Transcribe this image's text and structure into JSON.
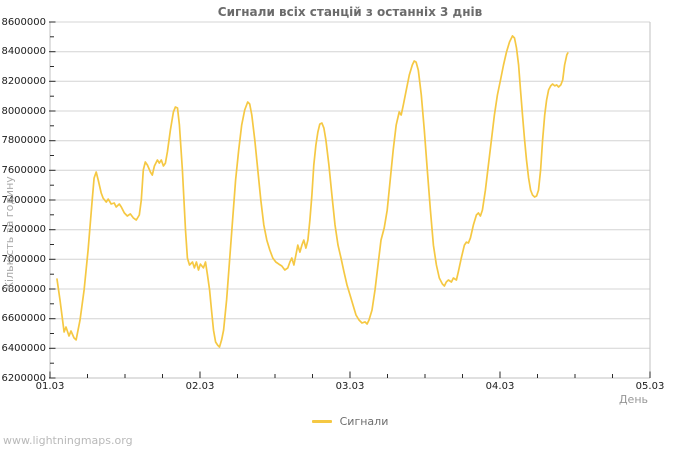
{
  "watermark": "www.lightningmaps.org",
  "chart_data": {
    "type": "line",
    "title": "Сигнали всіх станцій з останніх 3 днів",
    "xlabel": "День",
    "ylabel": "Кількість за годину",
    "legend_position": "bottom-center",
    "grid": "horizontal",
    "x_ticks": [
      "01.03",
      "02.03",
      "03.03",
      "04.03",
      "05.03"
    ],
    "x_minor_divisions_per_day": 4,
    "ylim": [
      6200000,
      8600000
    ],
    "y_tick_step": 200000,
    "y_minor_step": 100000,
    "y_ticks": [
      8600000,
      8400000,
      8200000,
      8000000,
      7800000,
      7600000,
      7400000,
      7200000,
      7000000,
      6800000,
      6600000,
      6400000,
      6200000
    ],
    "colors": {
      "line": "#f5c843",
      "grid": "#d4d4d4",
      "frame": "#c2c2c2",
      "tick": "#2a2a2a",
      "title": "#6b6b6b",
      "axis_text": "#1c1c1c",
      "muted_text": "#a8a8a8"
    },
    "series": [
      {
        "name": "Сигнали",
        "color": "#f5c843",
        "points_format": [
          "days_after_01.03",
          "signals_per_hour"
        ],
        "points": [
          [
            0.047,
            6867000
          ],
          [
            0.067,
            6726000
          ],
          [
            0.094,
            6510000
          ],
          [
            0.107,
            6544000
          ],
          [
            0.127,
            6483000
          ],
          [
            0.14,
            6517000
          ],
          [
            0.16,
            6470000
          ],
          [
            0.174,
            6457000
          ],
          [
            0.2,
            6590000
          ],
          [
            0.227,
            6793000
          ],
          [
            0.254,
            7063000
          ],
          [
            0.281,
            7400000
          ],
          [
            0.294,
            7548000
          ],
          [
            0.308,
            7589000
          ],
          [
            0.321,
            7535000
          ],
          [
            0.341,
            7447000
          ],
          [
            0.354,
            7413000
          ],
          [
            0.375,
            7386000
          ],
          [
            0.388,
            7406000
          ],
          [
            0.408,
            7373000
          ],
          [
            0.428,
            7380000
          ],
          [
            0.441,
            7353000
          ],
          [
            0.462,
            7373000
          ],
          [
            0.475,
            7353000
          ],
          [
            0.495,
            7313000
          ],
          [
            0.515,
            7292000
          ],
          [
            0.535,
            7306000
          ],
          [
            0.555,
            7279000
          ],
          [
            0.575,
            7265000
          ],
          [
            0.595,
            7299000
          ],
          [
            0.609,
            7400000
          ],
          [
            0.622,
            7602000
          ],
          [
            0.635,
            7656000
          ],
          [
            0.649,
            7636000
          ],
          [
            0.669,
            7589000
          ],
          [
            0.682,
            7568000
          ],
          [
            0.696,
            7629000
          ],
          [
            0.716,
            7670000
          ],
          [
            0.729,
            7649000
          ],
          [
            0.742,
            7670000
          ],
          [
            0.756,
            7629000
          ],
          [
            0.769,
            7649000
          ],
          [
            0.783,
            7724000
          ],
          [
            0.803,
            7872000
          ],
          [
            0.823,
            7993000
          ],
          [
            0.836,
            8027000
          ],
          [
            0.85,
            8020000
          ],
          [
            0.863,
            7906000
          ],
          [
            0.883,
            7602000
          ],
          [
            0.903,
            7198000
          ],
          [
            0.916,
            7009000
          ],
          [
            0.93,
            6962000
          ],
          [
            0.95,
            6982000
          ],
          [
            0.963,
            6942000
          ],
          [
            0.976,
            6982000
          ],
          [
            0.99,
            6928000
          ],
          [
            1.003,
            6968000
          ],
          [
            1.023,
            6942000
          ],
          [
            1.037,
            6982000
          ],
          [
            1.05,
            6894000
          ],
          [
            1.064,
            6793000
          ],
          [
            1.077,
            6658000
          ],
          [
            1.09,
            6523000
          ],
          [
            1.104,
            6443000
          ],
          [
            1.117,
            6422000
          ],
          [
            1.13,
            6409000
          ],
          [
            1.144,
            6457000
          ],
          [
            1.157,
            6523000
          ],
          [
            1.177,
            6726000
          ],
          [
            1.197,
            6995000
          ],
          [
            1.217,
            7265000
          ],
          [
            1.237,
            7535000
          ],
          [
            1.258,
            7737000
          ],
          [
            1.278,
            7906000
          ],
          [
            1.298,
            8007000
          ],
          [
            1.318,
            8061000
          ],
          [
            1.331,
            8047000
          ],
          [
            1.345,
            7973000
          ],
          [
            1.365,
            7804000
          ],
          [
            1.385,
            7602000
          ],
          [
            1.405,
            7400000
          ],
          [
            1.425,
            7232000
          ],
          [
            1.445,
            7130000
          ],
          [
            1.465,
            7063000
          ],
          [
            1.485,
            7009000
          ],
          [
            1.505,
            6982000
          ],
          [
            1.525,
            6968000
          ],
          [
            1.545,
            6955000
          ],
          [
            1.565,
            6928000
          ],
          [
            1.585,
            6942000
          ],
          [
            1.599,
            6982000
          ],
          [
            1.612,
            7009000
          ],
          [
            1.626,
            6962000
          ],
          [
            1.639,
            7029000
          ],
          [
            1.652,
            7096000
          ],
          [
            1.666,
            7049000
          ],
          [
            1.679,
            7096000
          ],
          [
            1.692,
            7130000
          ],
          [
            1.706,
            7076000
          ],
          [
            1.719,
            7130000
          ],
          [
            1.733,
            7265000
          ],
          [
            1.746,
            7434000
          ],
          [
            1.759,
            7636000
          ],
          [
            1.773,
            7771000
          ],
          [
            1.786,
            7859000
          ],
          [
            1.799,
            7912000
          ],
          [
            1.813,
            7919000
          ],
          [
            1.826,
            7885000
          ],
          [
            1.839,
            7804000
          ],
          [
            1.859,
            7636000
          ],
          [
            1.879,
            7434000
          ],
          [
            1.9,
            7232000
          ],
          [
            1.92,
            7096000
          ],
          [
            1.94,
            7009000
          ],
          [
            1.96,
            6915000
          ],
          [
            1.98,
            6827000
          ],
          [
            2.0,
            6760000
          ],
          [
            2.02,
            6692000
          ],
          [
            2.04,
            6625000
          ],
          [
            2.06,
            6591000
          ],
          [
            2.08,
            6571000
          ],
          [
            2.1,
            6578000
          ],
          [
            2.114,
            6564000
          ],
          [
            2.127,
            6591000
          ],
          [
            2.147,
            6658000
          ],
          [
            2.167,
            6793000
          ],
          [
            2.187,
            6962000
          ],
          [
            2.207,
            7130000
          ],
          [
            2.228,
            7211000
          ],
          [
            2.248,
            7332000
          ],
          [
            2.268,
            7535000
          ],
          [
            2.288,
            7737000
          ],
          [
            2.308,
            7906000
          ],
          [
            2.328,
            7993000
          ],
          [
            2.341,
            7973000
          ],
          [
            2.355,
            8040000
          ],
          [
            2.375,
            8142000
          ],
          [
            2.395,
            8243000
          ],
          [
            2.415,
            8310000
          ],
          [
            2.428,
            8337000
          ],
          [
            2.441,
            8330000
          ],
          [
            2.455,
            8276000
          ],
          [
            2.475,
            8108000
          ],
          [
            2.495,
            7872000
          ],
          [
            2.515,
            7602000
          ],
          [
            2.536,
            7332000
          ],
          [
            2.556,
            7096000
          ],
          [
            2.576,
            6962000
          ],
          [
            2.595,
            6874000
          ],
          [
            2.616,
            6834000
          ],
          [
            2.629,
            6820000
          ],
          [
            2.642,
            6847000
          ],
          [
            2.656,
            6861000
          ],
          [
            2.676,
            6847000
          ],
          [
            2.689,
            6874000
          ],
          [
            2.709,
            6861000
          ],
          [
            2.722,
            6915000
          ],
          [
            2.742,
            7009000
          ],
          [
            2.763,
            7096000
          ],
          [
            2.776,
            7116000
          ],
          [
            2.789,
            7110000
          ],
          [
            2.803,
            7144000
          ],
          [
            2.823,
            7232000
          ],
          [
            2.843,
            7299000
          ],
          [
            2.856,
            7313000
          ],
          [
            2.869,
            7292000
          ],
          [
            2.883,
            7332000
          ],
          [
            2.903,
            7467000
          ],
          [
            2.923,
            7636000
          ],
          [
            2.943,
            7804000
          ],
          [
            2.963,
            7973000
          ],
          [
            2.983,
            8108000
          ],
          [
            3.003,
            8209000
          ],
          [
            3.023,
            8310000
          ],
          [
            3.043,
            8398000
          ],
          [
            3.063,
            8465000
          ],
          [
            3.083,
            8506000
          ],
          [
            3.097,
            8492000
          ],
          [
            3.11,
            8425000
          ],
          [
            3.124,
            8310000
          ],
          [
            3.137,
            8142000
          ],
          [
            3.15,
            7973000
          ],
          [
            3.164,
            7804000
          ],
          [
            3.177,
            7670000
          ],
          [
            3.191,
            7548000
          ],
          [
            3.204,
            7467000
          ],
          [
            3.217,
            7434000
          ],
          [
            3.231,
            7420000
          ],
          [
            3.244,
            7427000
          ],
          [
            3.257,
            7467000
          ],
          [
            3.271,
            7602000
          ],
          [
            3.284,
            7804000
          ],
          [
            3.298,
            7973000
          ],
          [
            3.311,
            8074000
          ],
          [
            3.324,
            8142000
          ],
          [
            3.338,
            8169000
          ],
          [
            3.351,
            8182000
          ],
          [
            3.365,
            8169000
          ],
          [
            3.378,
            8176000
          ],
          [
            3.391,
            8162000
          ],
          [
            3.405,
            8176000
          ],
          [
            3.418,
            8209000
          ],
          [
            3.431,
            8310000
          ],
          [
            3.445,
            8378000
          ],
          [
            3.452,
            8391000
          ]
        ]
      }
    ]
  }
}
